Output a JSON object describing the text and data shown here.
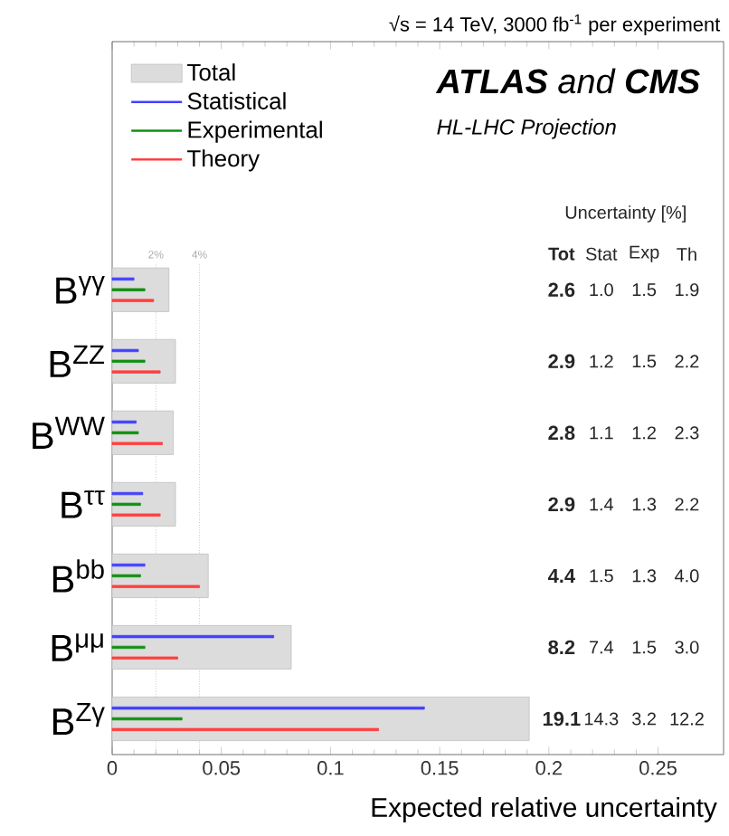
{
  "chart_data": {
    "type": "bar",
    "orientation": "horizontal",
    "title": "**ATLAS** and **CMS**",
    "subtitle": "HL-LHC Projection",
    "xlabel": "Expected relative uncertainty",
    "annotations": [
      "√s = 14 TeV, 3000 fb$^{-1}$ per experiment",
      "Uncertainty [%]",
      "Tot",
      "Stat",
      "Exp",
      "Th",
      "2.6",
      "1.0",
      "1.5",
      "1.9",
      "2.9",
      "1.2",
      "1.5",
      "2.2",
      "2.8",
      "1.1",
      "1.2",
      "2.3",
      "2.9",
      "1.4",
      "1.3",
      "2.2",
      "4.4",
      "1.5",
      "1.3",
      "4.0",
      "8.2",
      "7.4",
      "1.5",
      "3.0",
      "19.1",
      "14.3",
      "3.2",
      "12.2"
    ],
    "categories": [
      "B$^{γγ}$",
      "B$^{ZZ}$",
      "B$^{WW}$",
      "B$^{ττ}$",
      "B$^{bb}$",
      "B$^{μμ}$",
      "B$^{Zγ}$"
    ],
    "series": [
      {
        "name": "Total",
        "color": "#dcdcdc",
        "values": [
          0.026,
          0.029,
          0.028,
          0.029,
          0.044,
          0.082,
          0.191
        ]
      },
      {
        "name": "Statistical",
        "color": "#4040ff",
        "values": [
          0.01,
          0.012,
          0.011,
          0.014,
          0.015,
          0.074,
          0.143
        ]
      },
      {
        "name": "Experimental",
        "color": "#109010",
        "values": [
          0.015,
          0.015,
          0.012,
          0.013,
          0.013,
          0.015,
          0.032
        ]
      },
      {
        "name": "Theory",
        "color": "#ff4040",
        "values": [
          0.019,
          0.022,
          0.023,
          0.022,
          0.04,
          0.03,
          0.122
        ]
      }
    ],
    "xlim": [
      0,
      0.28
    ],
    "xticks": [
      0,
      0.05,
      0.1,
      0.15,
      0.2,
      0.25
    ],
    "ref_lines": [
      {
        "axis": "x",
        "value": 0.02,
        "label": "2%",
        "color": "#aaaaaa",
        "line_style": "dotted"
      },
      {
        "axis": "x",
        "value": 0.04,
        "label": "4%",
        "color": "#aaaaaa",
        "line_style": "dotted"
      }
    ],
    "legend": "top left",
    "grid": false
  }
}
